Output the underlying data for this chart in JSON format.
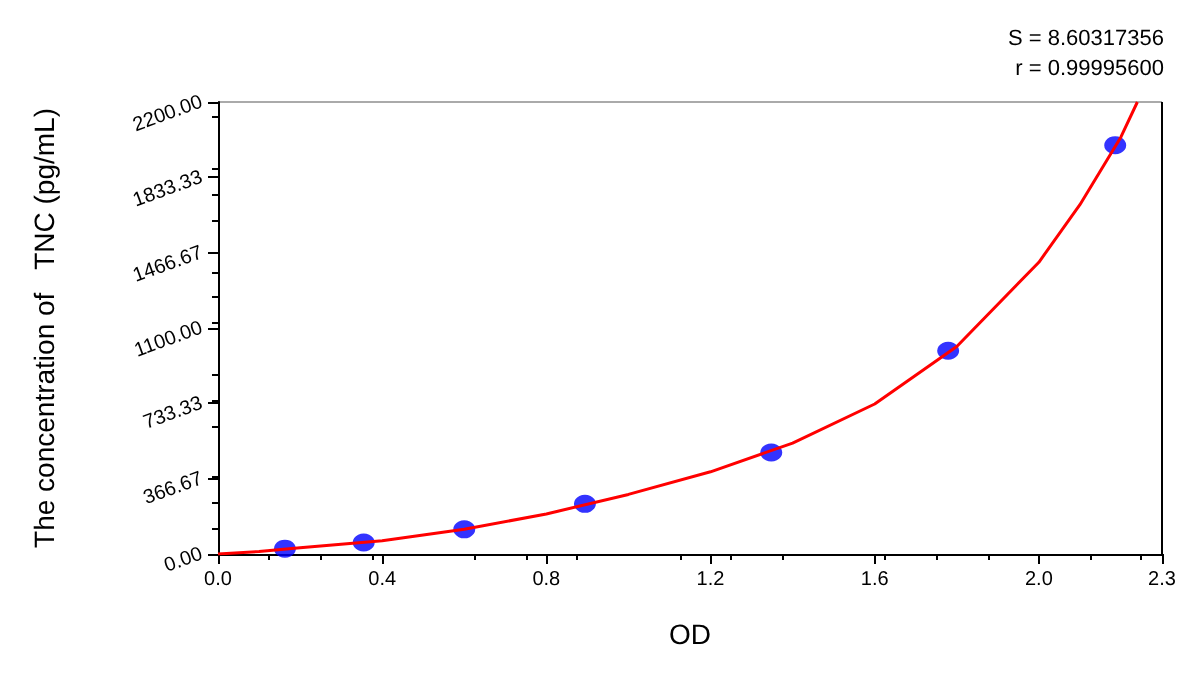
{
  "chart_data": {
    "type": "scatter",
    "xlabel": "OD",
    "ylabel": "The concentration of   TNC (pg/mL)",
    "annotations": [
      "S = 8.60317356",
      "r = 0.99995600"
    ],
    "xlim": [
      0,
      2.3
    ],
    "xticks": [
      {
        "value": 0,
        "label": "0.0"
      },
      0.4,
      0.8,
      1.2,
      1.6,
      {
        "value": 2,
        "label": "2.0"
      },
      2.3
    ],
    "ylim": [
      0,
      2200
    ],
    "yticks": [
      {
        "value": 0,
        "label": "0.00"
      },
      {
        "value": 366.67,
        "label": "366.67"
      },
      {
        "value": 733.33,
        "label": "733.33"
      },
      {
        "value": 1100,
        "label": "1100.00"
      },
      {
        "value": 1466.67,
        "label": "1466.67"
      },
      {
        "value": 1833.33,
        "label": "1833.33"
      },
      {
        "value": 2200,
        "label": "2200.00"
      }
    ],
    "grid": false,
    "series": [
      {
        "type": "line",
        "color": "#ff0000",
        "marker": "none",
        "line_style": "solid",
        "x": [
          0,
          0.1,
          0.2,
          0.4,
          0.6,
          0.8,
          1.0,
          1.2,
          1.4,
          1.6,
          1.8,
          2.0,
          2.1,
          2.2,
          2.24
        ],
        "values": [
          0,
          12,
          30,
          65,
          120,
          195,
          290,
          400,
          540,
          730,
          1010,
          1420,
          1700,
          2030,
          2200
        ]
      },
      {
        "type": "scatter",
        "color": "#0000ff",
        "marker": "circle",
        "x": [
          0.163,
          0.355,
          0.6,
          0.894,
          1.348,
          1.779,
          2.186
        ],
        "values": [
          26,
          56,
          120,
          244,
          494,
          989,
          1990
        ]
      }
    ]
  }
}
